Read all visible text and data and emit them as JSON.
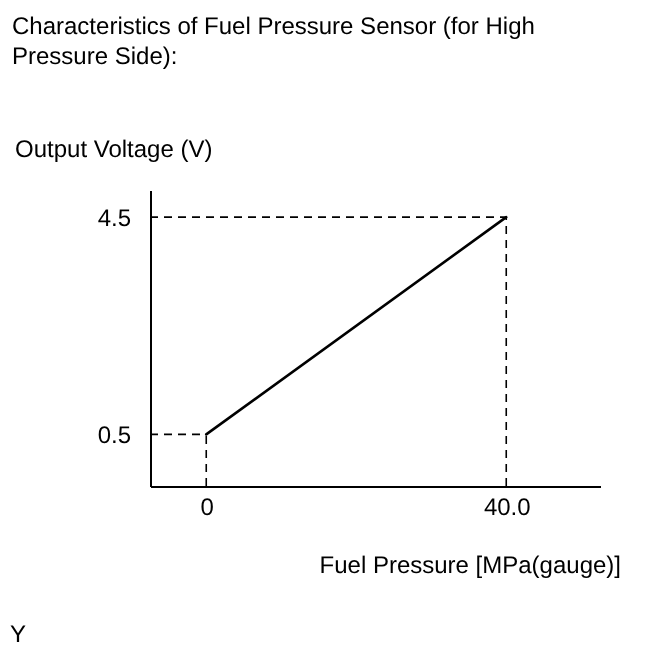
{
  "chart_data": {
    "type": "line",
    "title": "Characteristics of Fuel Pressure Sensor (for High Pressure Side):",
    "xlabel": "Fuel Pressure [MPa(gauge)]",
    "ylabel": "Output Voltage (V)",
    "annotations": [
      "Y"
    ],
    "x": [
      0,
      40
    ],
    "series": [
      {
        "color": "#000000",
        "values": [
          0.5,
          4.5
        ]
      }
    ],
    "xlim": [
      -7.5,
      52.5
    ],
    "ylim": [
      -0.45,
      5
    ],
    "xticks": [
      0,
      {
        "value": 40,
        "label": "40.0"
      }
    ],
    "yticks": [
      0.5,
      4.5
    ],
    "ref_lines": [
      {
        "axis": "y",
        "value": 0.5,
        "line_style": "dashed"
      },
      {
        "axis": "y",
        "value": 4.5,
        "line_style": "dashed"
      },
      {
        "axis": "x",
        "value": 0,
        "line_style": "dashed"
      },
      {
        "axis": "x",
        "value": 40,
        "line_style": "dashed"
      }
    ],
    "marker": "none",
    "line_style": "solid",
    "legend": false
  }
}
